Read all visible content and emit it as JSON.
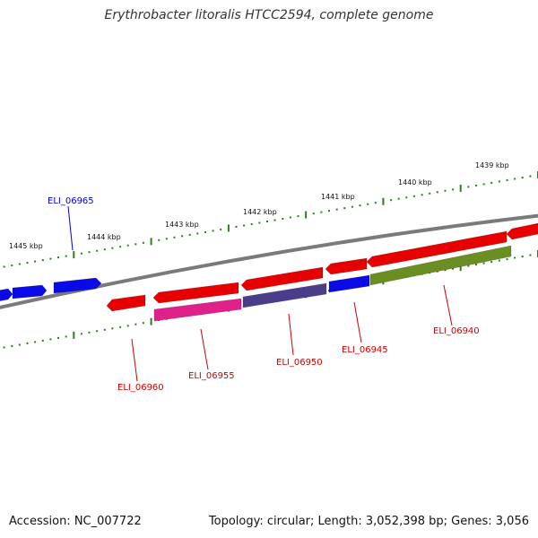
{
  "header": {
    "title": "Erythrobacter litoralis HTCC2594, complete genome"
  },
  "footer": {
    "accession": "Accession: NC_007722",
    "summary": "Topology: circular; Length: 3,052,398 bp; Genes: 3,056"
  },
  "colors": {
    "backbone": "#7a7a7a",
    "tick": "#2e7d1e",
    "ruler_text": "#111111",
    "gene_red": "#e60000",
    "gene_blue": "#0a0ae6",
    "gene_magenta": "#e0218a",
    "gene_navy": "#4b3d8a",
    "gene_olive": "#6b8e23",
    "label_red": "#cc0000",
    "label_blue": "#0000cc"
  },
  "ruler": {
    "outer_labels": [
      "1445 kbp",
      "1444 kbp",
      "1443 kbp",
      "1442 kbp",
      "1441 kbp",
      "1440 kbp",
      "1439 kbp"
    ]
  },
  "gene_labels": [
    {
      "id": "ELI_06965",
      "color": "blue"
    },
    {
      "id": "ELI_06960",
      "color": "red"
    },
    {
      "id": "ELI_06955",
      "color": "red"
    },
    {
      "id": "ELI_06950",
      "color": "red"
    },
    {
      "id": "ELI_06945",
      "color": "red"
    },
    {
      "id": "ELI_06940",
      "color": "red"
    }
  ]
}
